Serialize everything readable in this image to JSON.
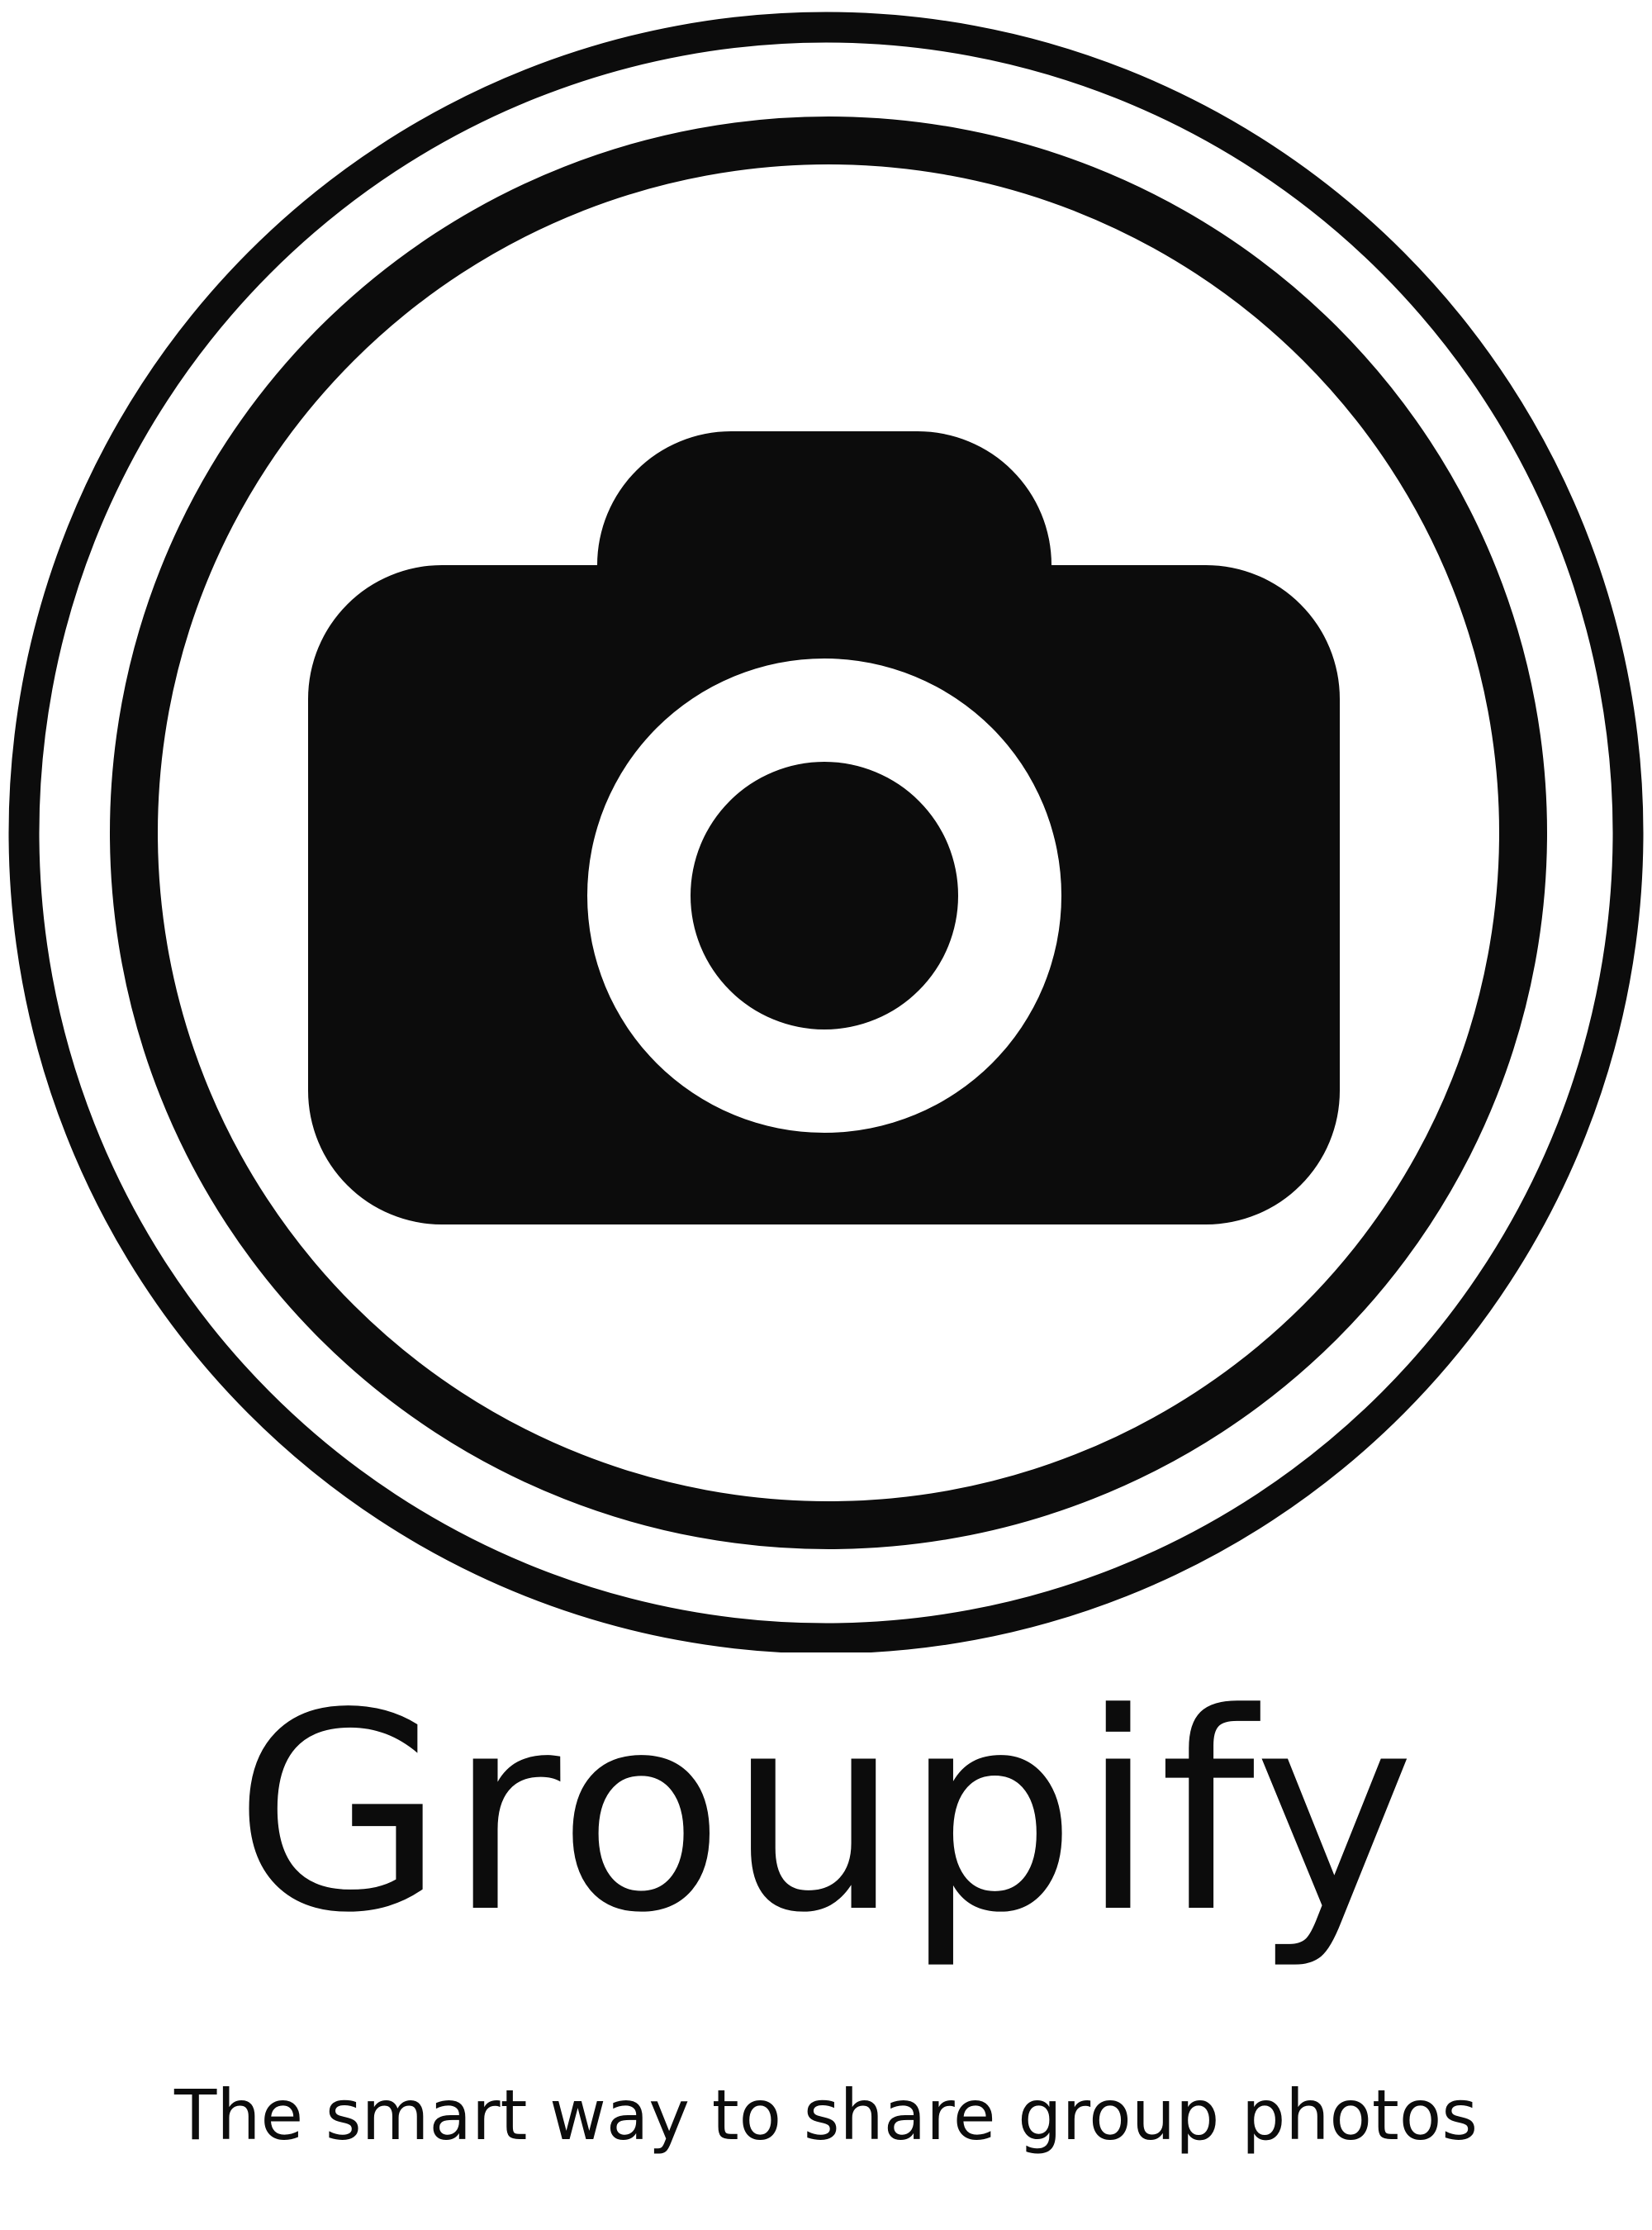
{
  "brand": {
    "name": "Groupify",
    "tagline": "The smart way to share group photos"
  },
  "logo": {
    "icon": "camera-icon",
    "ink_color": "#0c0c0c",
    "background_color": "#ffffff"
  }
}
